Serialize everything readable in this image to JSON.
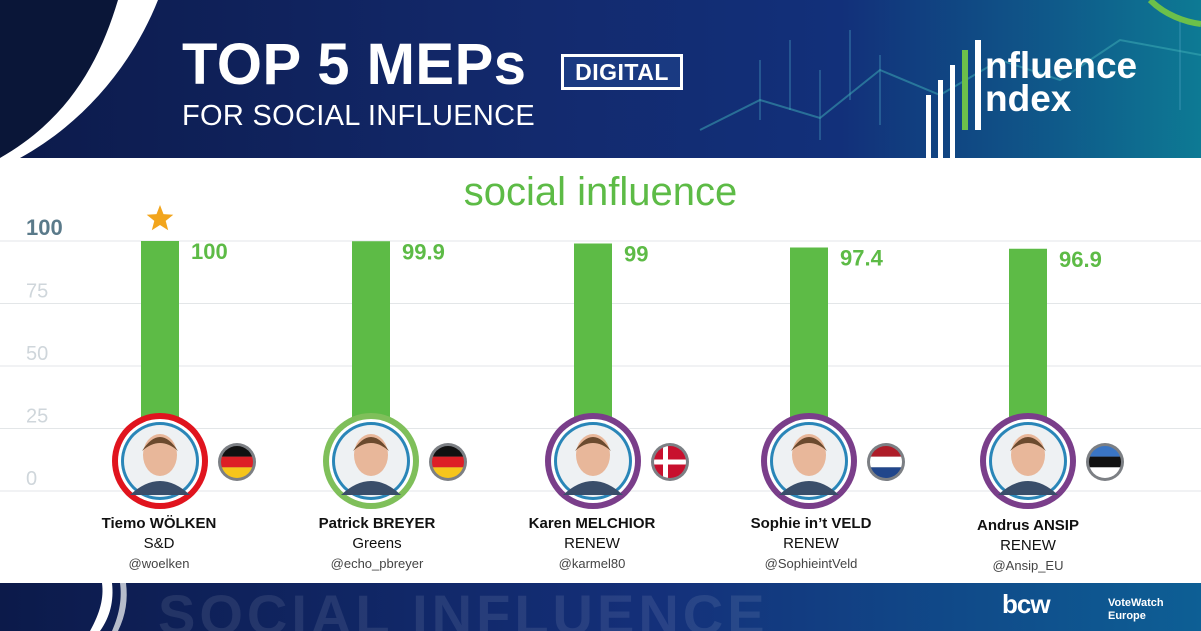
{
  "header": {
    "title": "TOP 5 MEPs",
    "badge": "DIGITAL",
    "subtitle": "FOR SOCIAL INFLUENCE",
    "logo_line1": "nfluence",
    "logo_line2": "ndex"
  },
  "colors": {
    "header_bg": "#132a6e",
    "bar": "#5dbb46",
    "value_label": "#5dbb46",
    "star": "#f2a51d",
    "axis_top_label": "#5a7a8a",
    "axis_label": "#cfd6db",
    "gridline": "#e3e6e8"
  },
  "chart_data": {
    "type": "bar",
    "title": "social influence",
    "categories": [
      "Tiemo WÖLKEN",
      "Patrick BREYER",
      "Karen MELCHIOR",
      "Sophie in’t VELD",
      "Andrus ANSIP"
    ],
    "values": [
      100,
      99.9,
      99,
      97.4,
      96.9
    ],
    "value_labels": [
      "100",
      "99.9",
      "99",
      "97.4",
      "96.9"
    ],
    "ylim": [
      0,
      100
    ],
    "yticks": [
      0,
      25,
      50,
      75,
      100
    ],
    "ytick_labels": [
      "0",
      "25",
      "50",
      "75",
      "100"
    ],
    "grid": true,
    "top_marker": "star-icon"
  },
  "meps": [
    {
      "name": "Tiemo WÖLKEN",
      "group": "S&D",
      "handle": "@woelken",
      "flag": "germany-flag-icon",
      "ring_color": "#e0141e"
    },
    {
      "name": "Patrick BREYER",
      "group": "Greens",
      "handle": "@echo_pbreyer",
      "flag": "germany-flag-icon",
      "ring_color": "#7fbf5a"
    },
    {
      "name": "Karen MELCHIOR",
      "group": "RENEW",
      "handle": "@karmel80",
      "flag": "denmark-flag-icon",
      "ring_color": "#7a3e8a"
    },
    {
      "name": "Sophie in’t VELD",
      "group": "RENEW",
      "handle": "@SophieintVeld",
      "flag": "netherlands-flag-icon",
      "ring_color": "#7a3e8a"
    },
    {
      "name": "Andrus ANSIP",
      "group": "RENEW",
      "handle": "@Ansip_EU",
      "flag": "estonia-flag-icon",
      "ring_color": "#7a3e8a"
    }
  ],
  "footer": {
    "watermark": "SOCIAL INFLUENCE",
    "logo1": "bcw",
    "logo2_line1": "VoteWatch",
    "logo2_line2": "Europe"
  }
}
